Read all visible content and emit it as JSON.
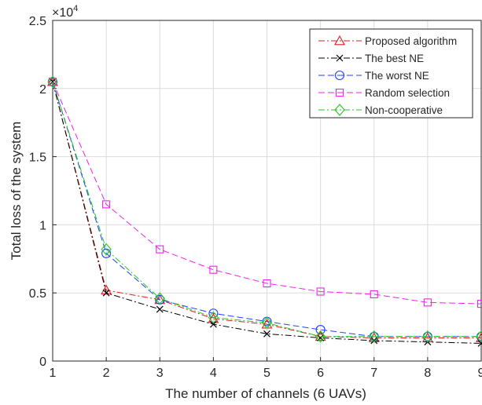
{
  "chart_data": {
    "type": "line",
    "xlabel": "The number of channels (6 UAVs)",
    "ylabel": "Total loss of the system",
    "y_multiplier_label": "×10",
    "y_multiplier_exponent": "4",
    "xlim": [
      1,
      9
    ],
    "ylim": [
      0,
      2.5
    ],
    "x_ticks": [
      "1",
      "2",
      "3",
      "4",
      "5",
      "6",
      "7",
      "8",
      "9"
    ],
    "y_ticks": [
      "0",
      "0.5",
      "1",
      "1.5",
      "2",
      "2.5"
    ],
    "grid": true,
    "legend_position": "top-right",
    "x": [
      1,
      2,
      3,
      4,
      5,
      6,
      7,
      8,
      9
    ],
    "series": [
      {
        "name": "Proposed algorithm",
        "color": "#e31a1c",
        "dash": "8,3,2,3",
        "marker": "triangle",
        "values": [
          2.05,
          0.52,
          0.45,
          0.31,
          0.27,
          0.18,
          0.17,
          0.17,
          0.17
        ]
      },
      {
        "name": "The best NE",
        "color": "#000000",
        "dash": "8,3,2,3",
        "marker": "x",
        "values": [
          2.05,
          0.5,
          0.38,
          0.27,
          0.2,
          0.17,
          0.15,
          0.14,
          0.13
        ]
      },
      {
        "name": "The worst NE",
        "color": "#1f3fff",
        "dash": "8,4",
        "marker": "circle",
        "values": [
          2.05,
          0.79,
          0.45,
          0.35,
          0.29,
          0.23,
          0.18,
          0.18,
          0.18
        ]
      },
      {
        "name": "Random selection",
        "color": "#ee22ee",
        "dash": "8,4",
        "marker": "square",
        "values": [
          2.05,
          1.15,
          0.82,
          0.67,
          0.57,
          0.51,
          0.49,
          0.43,
          0.42
        ]
      },
      {
        "name": "Non-cooperative",
        "color": "#22cc22",
        "dash": "8,3,2,3",
        "marker": "diamond",
        "values": [
          2.05,
          0.82,
          0.46,
          0.32,
          0.28,
          0.18,
          0.18,
          0.18,
          0.18
        ]
      }
    ]
  }
}
